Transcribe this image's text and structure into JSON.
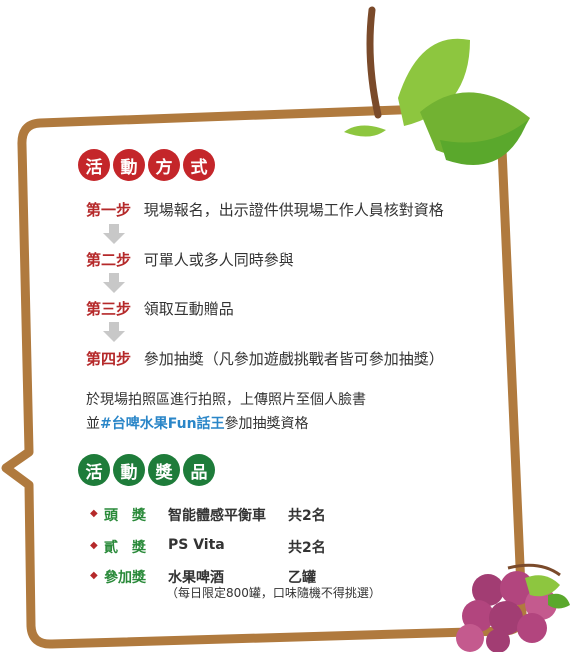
{
  "activity": {
    "heading_chars": [
      "活",
      "動",
      "方",
      "式"
    ],
    "heading_color": "#c4262a",
    "steps": [
      {
        "label": "第一步",
        "text": "現場報名，出示證件供現場工作人員核對資格"
      },
      {
        "label": "第二步",
        "text": "可單人或多人同時參與"
      },
      {
        "label": "第三步",
        "text": "領取互動贈品"
      },
      {
        "label": "第四步",
        "text": "參加抽獎（凡參加遊戲挑戰者皆可參加抽獎）"
      }
    ],
    "note_line1": "於現場拍照區進行拍照，上傳照片至個人臉書",
    "note_line2_prefix": "並",
    "note_line2_highlight": "#台啤水果Fun話王",
    "note_line2_suffix": "參加抽獎資格"
  },
  "prizes": {
    "heading_chars": [
      "活",
      "動",
      "獎",
      "品"
    ],
    "heading_color": "#1e7c3a",
    "items": [
      {
        "name": "頭　獎",
        "item": "智能體感平衡車",
        "qty": "共2名"
      },
      {
        "name": "貳　獎",
        "item": "PS Vita",
        "qty": "共2名"
      },
      {
        "name": "參加獎",
        "item": "水果啤酒",
        "qty": "乙罐"
      }
    ],
    "footnote": "（每日限定800罐，口味隨機不得挑選）"
  },
  "colors": {
    "frame": "#b07a3e",
    "leaf_light": "#8dc63f",
    "leaf_dark": "#5aa82c",
    "stem": "#7a4a2a",
    "grape": "#b2457e",
    "arrow": "#c8c8c8"
  },
  "icons": [
    "leaf-icon",
    "grape-icon",
    "arrow-down-icon",
    "bullet-icon"
  ]
}
